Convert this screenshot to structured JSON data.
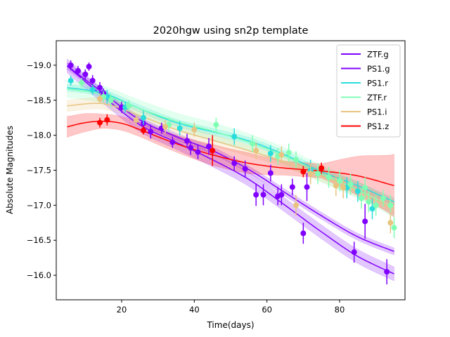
{
  "chart_data": {
    "type": "scatter",
    "title": "2020hgw using sn2p template",
    "xlabel": "Time(days)",
    "ylabel": "Absolute Magnitudes",
    "xlim": [
      2,
      98
    ],
    "ylim": [
      -15.65,
      -19.35
    ],
    "y_inverted": true,
    "xticks": [
      20,
      40,
      60,
      80
    ],
    "yticks": [
      -19.0,
      -18.5,
      -18.0,
      -17.5,
      -17.0,
      -16.5,
      -16.0
    ],
    "ytick_labels": [
      "−19.0",
      "−18.5",
      "−18.0",
      "−17.5",
      "−17.0",
      "−16.5",
      "−16.0"
    ],
    "grid": false,
    "legend_placement": "top-right",
    "series": [
      {
        "name": "ZTF.g",
        "color": "#8000ff",
        "fit": {
          "x": [
            5,
            15,
            25,
            35,
            45,
            55,
            65,
            75,
            85,
            95
          ],
          "y": [
            -18.99,
            -18.6,
            -18.22,
            -17.98,
            -17.78,
            -17.51,
            -17.18,
            -16.85,
            -16.55,
            -16.34
          ],
          "band": 0.05
        },
        "points": [
          {
            "x": 6,
            "y": -19.0,
            "err": 0.07
          },
          {
            "x": 8,
            "y": -18.92,
            "err": 0.07
          },
          {
            "x": 11,
            "y": -18.98,
            "err": 0.06
          },
          {
            "x": 12,
            "y": -18.78,
            "err": 0.08
          },
          {
            "x": 14,
            "y": -18.68,
            "err": 0.08
          },
          {
            "x": 20,
            "y": -18.4,
            "err": 0.08
          },
          {
            "x": 26,
            "y": -18.17,
            "err": 0.1
          },
          {
            "x": 38,
            "y": -17.92,
            "err": 0.1
          },
          {
            "x": 44,
            "y": -17.84,
            "err": 0.12
          },
          {
            "x": 57,
            "y": -17.15,
            "err": 0.16
          },
          {
            "x": 64,
            "y": -17.15,
            "err": 0.15
          },
          {
            "x": 67,
            "y": -17.26,
            "err": 0.12
          },
          {
            "x": 70,
            "y": -16.6,
            "err": 0.15
          },
          {
            "x": 71,
            "y": -17.26,
            "err": 0.2
          },
          {
            "x": 84,
            "y": -16.33,
            "err": 0.15
          },
          {
            "x": 87,
            "y": -16.77,
            "err": 0.25
          }
        ]
      },
      {
        "name": "PS1.g",
        "color": "#8000ff",
        "fit": {
          "x": [
            5,
            15,
            25,
            35,
            45,
            55,
            65,
            75,
            85,
            95
          ],
          "y": [
            -18.99,
            -18.55,
            -18.15,
            -17.9,
            -17.65,
            -17.37,
            -17.0,
            -16.62,
            -16.27,
            -16.02
          ],
          "band": 0.1
        },
        "points": [
          {
            "x": 10,
            "y": -18.87,
            "err": 0.07
          },
          {
            "x": 15,
            "y": -18.6,
            "err": 0.07
          },
          {
            "x": 28,
            "y": -18.05,
            "err": 0.1
          },
          {
            "x": 31,
            "y": -18.1,
            "err": 0.08
          },
          {
            "x": 34,
            "y": -17.9,
            "err": 0.08
          },
          {
            "x": 39,
            "y": -17.82,
            "err": 0.1
          },
          {
            "x": 41,
            "y": -17.76,
            "err": 0.1
          },
          {
            "x": 51,
            "y": -17.6,
            "err": 0.1
          },
          {
            "x": 54,
            "y": -17.52,
            "err": 0.12
          },
          {
            "x": 59,
            "y": -17.15,
            "err": 0.15
          },
          {
            "x": 61,
            "y": -17.46,
            "err": 0.12
          },
          {
            "x": 63,
            "y": -17.13,
            "err": 0.13
          },
          {
            "x": 93,
            "y": -16.05,
            "err": 0.18
          }
        ]
      },
      {
        "name": "PS1.r",
        "color": "#2adddd",
        "fit": {
          "x": [
            5,
            15,
            25,
            35,
            45,
            55,
            65,
            75,
            85,
            95
          ],
          "y": [
            -18.68,
            -18.6,
            -18.38,
            -18.18,
            -18.05,
            -17.92,
            -17.72,
            -17.48,
            -17.28,
            -17.05
          ],
          "band": 0.05
        },
        "points": [
          {
            "x": 6,
            "y": -18.78,
            "err": 0.07
          },
          {
            "x": 12,
            "y": -18.65,
            "err": 0.07
          },
          {
            "x": 16,
            "y": -18.55,
            "err": 0.1
          },
          {
            "x": 21,
            "y": -18.4,
            "err": 0.08
          },
          {
            "x": 26,
            "y": -18.25,
            "err": 0.1
          },
          {
            "x": 36,
            "y": -18.1,
            "err": 0.1
          },
          {
            "x": 51,
            "y": -17.98,
            "err": 0.12
          },
          {
            "x": 61,
            "y": -17.74,
            "err": 0.12
          },
          {
            "x": 72,
            "y": -17.5,
            "err": 0.15
          },
          {
            "x": 82,
            "y": -17.25,
            "err": 0.15
          },
          {
            "x": 85,
            "y": -17.2,
            "err": 0.15
          },
          {
            "x": 89,
            "y": -16.95,
            "err": 0.15
          }
        ]
      },
      {
        "name": "ZTF.r",
        "color": "#80ffb4",
        "fit": {
          "x": [
            5,
            15,
            25,
            35,
            45,
            55,
            65,
            75,
            85,
            95
          ],
          "y": [
            -18.66,
            -18.58,
            -18.38,
            -18.2,
            -18.06,
            -17.9,
            -17.7,
            -17.45,
            -17.22,
            -16.95
          ],
          "band": 0.12
        },
        "points": [
          {
            "x": 9,
            "y": -18.75,
            "err": 0.07
          },
          {
            "x": 15,
            "y": -18.55,
            "err": 0.08
          },
          {
            "x": 17,
            "y": -18.5,
            "err": 0.1
          },
          {
            "x": 22,
            "y": -18.42,
            "err": 0.08
          },
          {
            "x": 33,
            "y": -18.15,
            "err": 0.1
          },
          {
            "x": 46,
            "y": -18.15,
            "err": 0.1
          },
          {
            "x": 56,
            "y": -17.88,
            "err": 0.12
          },
          {
            "x": 63,
            "y": -17.7,
            "err": 0.12
          },
          {
            "x": 66,
            "y": -17.75,
            "err": 0.13
          },
          {
            "x": 68,
            "y": -17.65,
            "err": 0.12
          },
          {
            "x": 74,
            "y": -17.45,
            "err": 0.15
          },
          {
            "x": 77,
            "y": -17.4,
            "err": 0.15
          },
          {
            "x": 80,
            "y": -17.35,
            "err": 0.15
          },
          {
            "x": 83,
            "y": -17.3,
            "err": 0.15
          },
          {
            "x": 86,
            "y": -17.1,
            "err": 0.15
          },
          {
            "x": 87,
            "y": -17.25,
            "err": 0.15
          },
          {
            "x": 88,
            "y": -17.05,
            "err": 0.15
          },
          {
            "x": 90,
            "y": -17.0,
            "err": 0.15
          },
          {
            "x": 92,
            "y": -17.1,
            "err": 0.12
          },
          {
            "x": 94,
            "y": -17.0,
            "err": 0.15
          },
          {
            "x": 95,
            "y": -16.68,
            "err": 0.15
          }
        ]
      },
      {
        "name": "PS1.i",
        "color": "#e8c480",
        "fit": {
          "x": [
            5,
            15,
            25,
            35,
            45,
            55,
            65,
            75,
            85,
            95
          ],
          "y": [
            -18.42,
            -18.45,
            -18.28,
            -18.08,
            -17.93,
            -17.78,
            -17.62,
            -17.42,
            -17.2,
            -16.95
          ],
          "band": 0.08
        },
        "points": [
          {
            "x": 14,
            "y": -18.52,
            "err": 0.07
          },
          {
            "x": 24,
            "y": -18.22,
            "err": 0.08
          },
          {
            "x": 32,
            "y": -18.12,
            "err": 0.1
          },
          {
            "x": 40,
            "y": -18.08,
            "err": 0.1
          },
          {
            "x": 57,
            "y": -17.78,
            "err": 0.12
          },
          {
            "x": 64,
            "y": -17.72,
            "err": 0.12
          },
          {
            "x": 68,
            "y": -17.0,
            "err": 0.15
          },
          {
            "x": 72,
            "y": -17.45,
            "err": 0.15
          },
          {
            "x": 79,
            "y": -17.28,
            "err": 0.15
          },
          {
            "x": 81,
            "y": -17.25,
            "err": 0.15
          },
          {
            "x": 94,
            "y": -16.75,
            "err": 0.15
          }
        ]
      },
      {
        "name": "PS1.z",
        "color": "#ff0000",
        "fit": {
          "x": [
            5,
            10,
            15,
            20,
            25,
            35,
            45,
            55,
            65,
            75,
            85,
            95
          ],
          "y": [
            -18.12,
            -18.18,
            -18.2,
            -18.17,
            -18.08,
            -17.88,
            -17.72,
            -17.6,
            -17.53,
            -17.49,
            -17.42,
            -17.28
          ],
          "band": [
            0.15,
            0.13,
            0.1,
            0.1,
            0.1,
            0.12,
            0.15,
            0.15,
            0.1,
            0.1,
            0.28,
            0.45
          ]
        },
        "points": [
          {
            "x": 14,
            "y": -18.18,
            "err": 0.07
          },
          {
            "x": 16,
            "y": -18.22,
            "err": 0.08
          },
          {
            "x": 26,
            "y": -18.07,
            "err": 0.06
          },
          {
            "x": 45,
            "y": -17.78,
            "err": 0.22
          },
          {
            "x": 70,
            "y": -17.48,
            "err": 0.08
          },
          {
            "x": 75,
            "y": -17.53,
            "err": 0.08
          }
        ]
      }
    ]
  }
}
